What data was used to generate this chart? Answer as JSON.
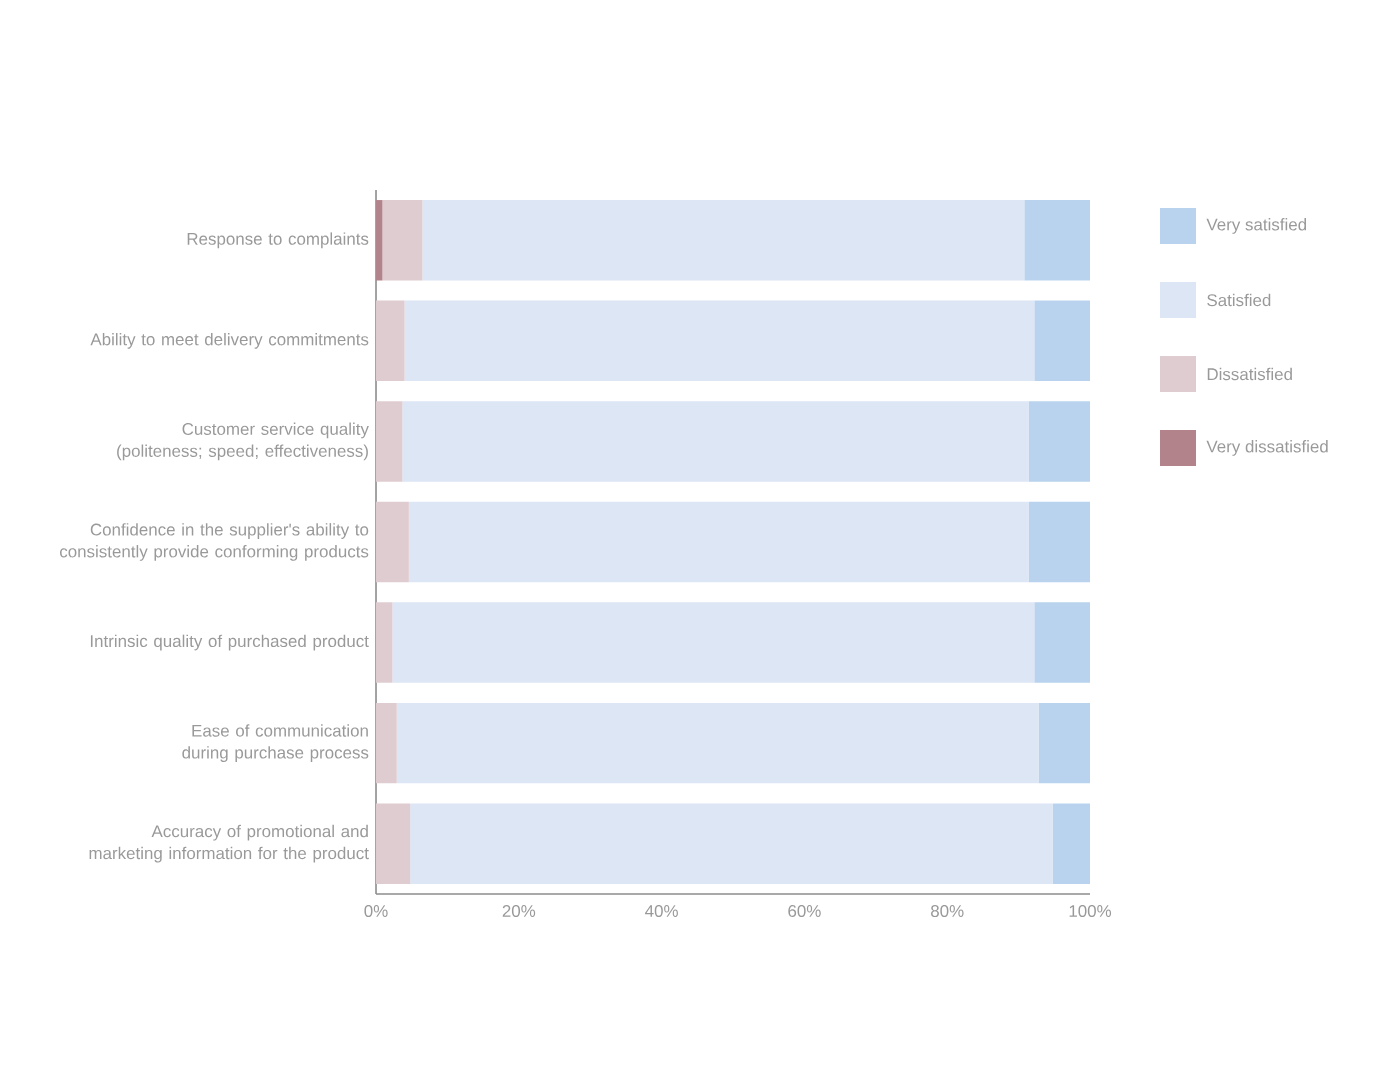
{
  "chart_data": {
    "type": "bar",
    "orientation": "horizontal",
    "stacked": true,
    "categories": [
      "Response to complaints",
      "Ability to meet delivery commitments",
      "Customer service quality (politeness; speed; effectiveness)",
      "Confidence in the supplier's ability to consistently provide conforming  products",
      "Intrinsic quality of purchased product",
      "Ease of communication during purchase process",
      "Accuracy of promotional and marketing information for the product"
    ],
    "series": [
      {
        "name": "Very dissatisfied",
        "color": "#b3838b",
        "values": [
          0.9,
          0,
          0,
          0,
          0,
          0,
          0
        ]
      },
      {
        "name": "Dissatisfied",
        "color": "#dfccd0",
        "values": [
          5.6,
          4.0,
          3.7,
          4.6,
          2.3,
          2.9,
          4.8
        ]
      },
      {
        "name": "Satisfied",
        "color": "#dce6f5",
        "values": [
          84.3,
          88.2,
          87.7,
          86.8,
          89.9,
          89.9,
          90.0
        ]
      },
      {
        "name": "Very satisfied",
        "color": "#b9d3ee",
        "values": [
          9.2,
          7.8,
          8.6,
          8.6,
          7.8,
          7.2,
          5.2
        ]
      }
    ],
    "xlim": [
      0,
      100
    ],
    "xticks": [
      {
        "value": 0,
        "label": "0%"
      },
      {
        "value": 20,
        "label": "20%"
      },
      {
        "value": 40,
        "label": "40%"
      },
      {
        "value": 60,
        "label": "60%"
      },
      {
        "value": 80,
        "label": "80%"
      },
      {
        "value": 100,
        "label": "100%"
      }
    ],
    "legend": "right"
  }
}
